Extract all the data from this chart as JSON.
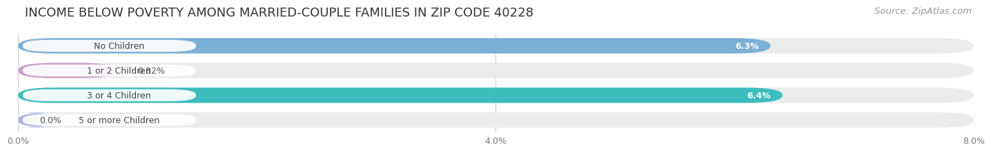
{
  "title": "INCOME BELOW POVERTY AMONG MARRIED-COUPLE FAMILIES IN ZIP CODE 40228",
  "source": "Source: ZipAtlas.com",
  "categories": [
    "No Children",
    "1 or 2 Children",
    "3 or 4 Children",
    "5 or more Children"
  ],
  "values": [
    6.3,
    0.82,
    6.4,
    0.0
  ],
  "bar_colors": [
    "#7bafd4",
    "#c9a0c8",
    "#3dbdbd",
    "#a8b4e0"
  ],
  "label_texts": [
    "6.3%",
    "0.82%",
    "6.4%",
    "0.0%"
  ],
  "xlim": [
    0,
    8.0
  ],
  "xticks": [
    0.0,
    4.0,
    8.0
  ],
  "xticklabels": [
    "0.0%",
    "4.0%",
    "8.0%"
  ],
  "title_fontsize": 13,
  "source_fontsize": 9.5,
  "bar_label_fontsize": 9,
  "category_fontsize": 9,
  "background_color": "#ffffff",
  "bar_track_color": "#ebebeb",
  "label_inside_threshold": 1.5
}
